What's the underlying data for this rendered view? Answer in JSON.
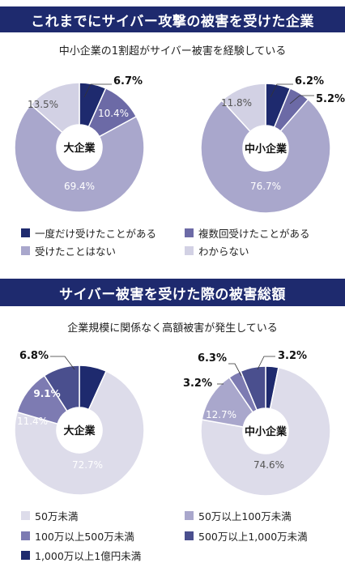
{
  "section1": {
    "title": "これまでにサイバー攻撃の被害を受けた企業",
    "subtitle": "中小企業の1割超がサイバー被害を経験している"
  },
  "section2": {
    "title": "サイバー被害を受けた際の被害総額",
    "subtitle": "企業規模に関係なく高額被害が発生している"
  },
  "legend1": {
    "items": [
      "一度だけ受けたことがある",
      "複数回受けたことがある",
      "受けたことはない",
      "わからない"
    ]
  },
  "legend2": {
    "items": [
      "50万未満",
      "50万以上100万未満",
      "100万以上500万未満",
      "500万以上1,000万未満",
      "1,000万以上1億円未満"
    ]
  },
  "colors": {
    "navy": "#1e2a6e",
    "purple_dark": "#6c6aa6",
    "purple_mid": "#a9a7cc",
    "lavender_light": "#d2d1e4",
    "pale": "#dddcea"
  },
  "chart_data": [
    {
      "type": "pie",
      "center_label": "大企業",
      "categories": [
        "一度だけ受けたことがある",
        "複数回受けたことがある",
        "受けたことはない",
        "わからない"
      ],
      "values": [
        6.7,
        10.4,
        69.4,
        13.5
      ],
      "labels": [
        "6.7%",
        "10.4%",
        "69.4%",
        "13.5%"
      ]
    },
    {
      "type": "pie",
      "center_label": "中小企業",
      "categories": [
        "一度だけ受けたことがある",
        "複数回受けたことがある",
        "受けたことはない",
        "わからない"
      ],
      "values": [
        6.2,
        5.2,
        76.7,
        11.8
      ],
      "labels": [
        "6.2%",
        "5.2%",
        "76.7%",
        "11.8%"
      ]
    },
    {
      "type": "pie",
      "center_label": "大企業",
      "categories": [
        "1,000万以上1億円未満",
        "50万未満",
        "50万以上100万未満",
        "100万以上500万未満",
        "500万以上1,000万未満"
      ],
      "values": [
        6.8,
        72.7,
        0,
        11.4,
        9.1
      ],
      "labels": [
        "6.8%",
        "72.7%",
        "",
        "11.4%",
        "9.1%"
      ]
    },
    {
      "type": "pie",
      "center_label": "中小企業",
      "categories": [
        "1,000万以上1億円未満",
        "50万未満",
        "50万以上100万未満",
        "100万以上500万未満",
        "500万以上1,000万未満"
      ],
      "values": [
        3.2,
        74.6,
        12.7,
        3.2,
        6.3
      ],
      "labels": [
        "3.2%",
        "74.6%",
        "12.7%",
        "3.2%",
        "6.3%"
      ]
    }
  ]
}
